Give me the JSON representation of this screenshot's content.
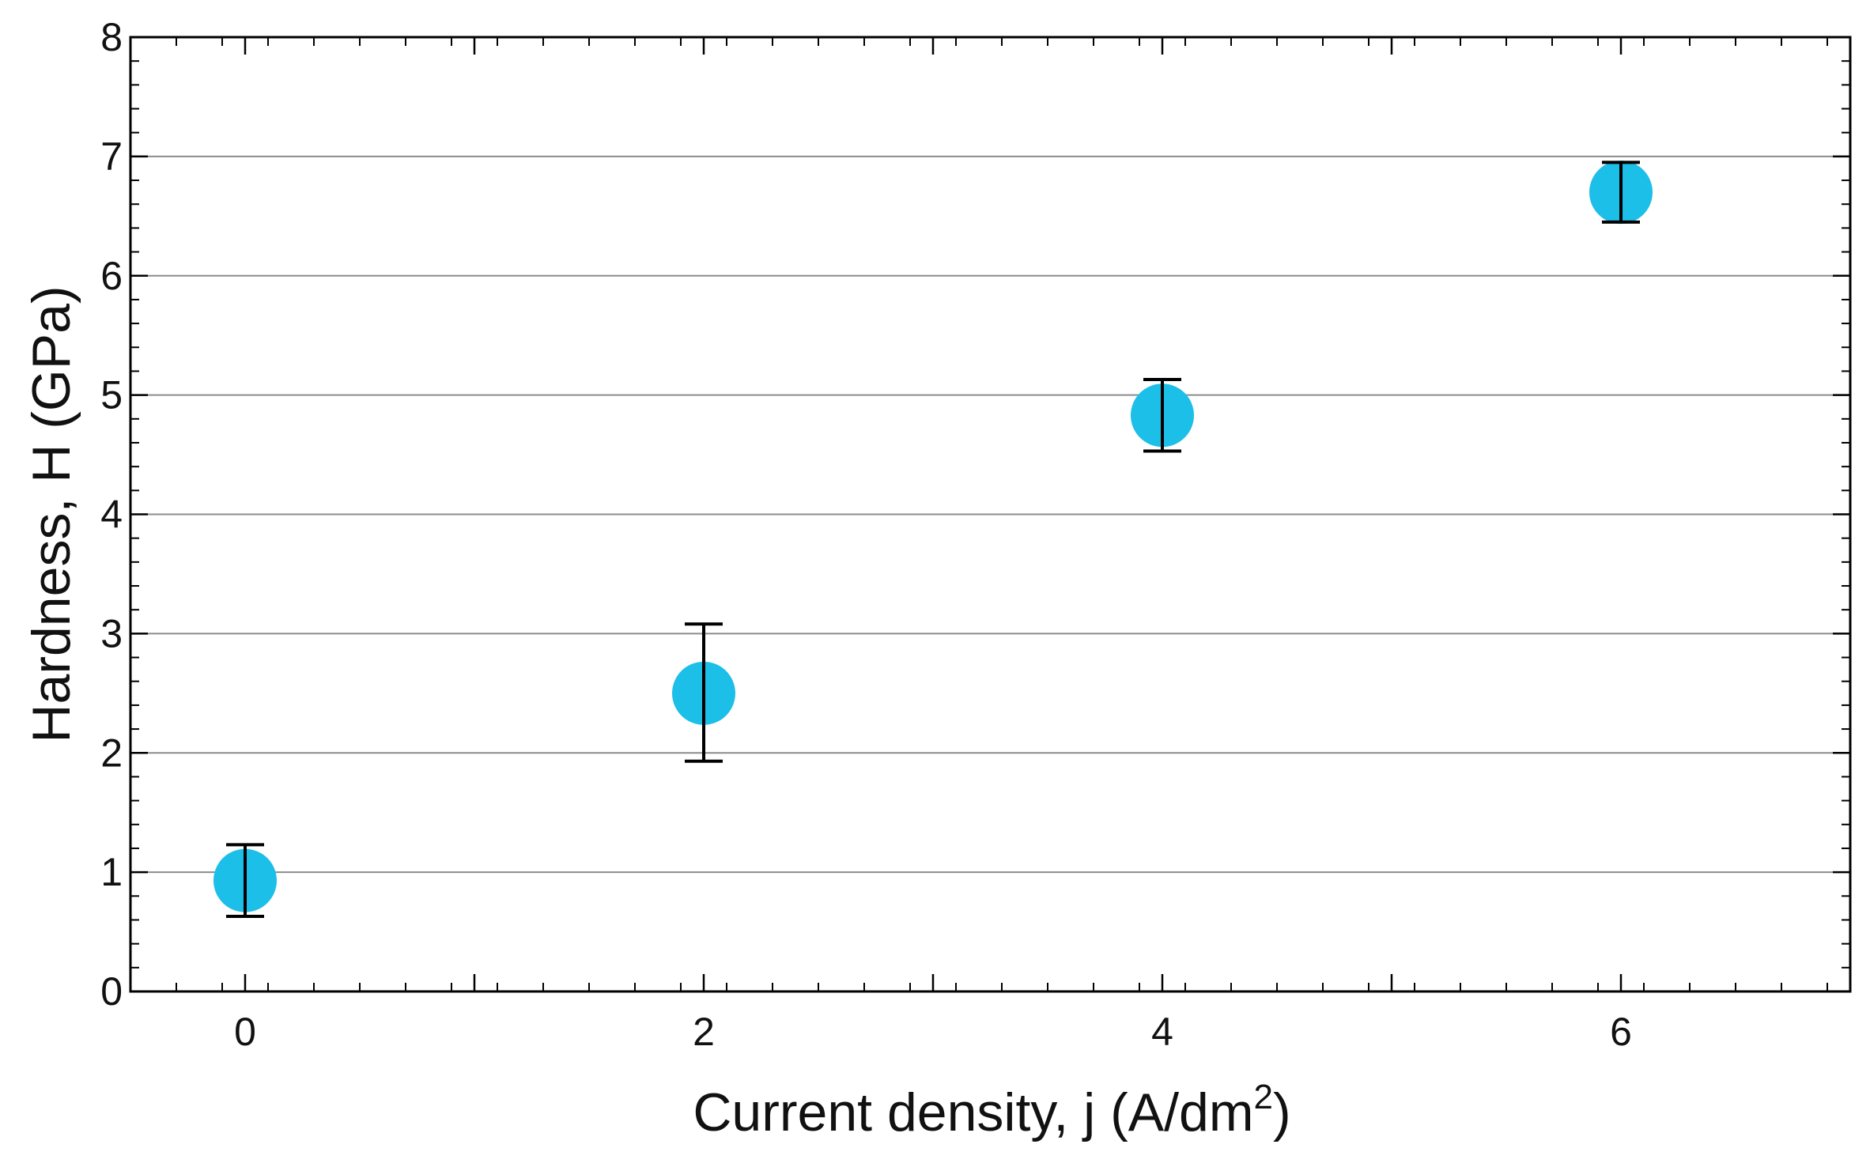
{
  "chart_data": {
    "type": "scatter",
    "title": "",
    "xlabel": "Current density, j (A/dm",
    "xlabel_superscript": "2",
    "xlabel_suffix": ")",
    "ylabel": "Hardness, H (GPa)",
    "xlim": [
      -0.5,
      7
    ],
    "ylim": [
      0,
      8
    ],
    "x_ticks": [
      "0",
      "2",
      "4",
      "6"
    ],
    "y_ticks": [
      "0",
      "1",
      "2",
      "3",
      "4",
      "5",
      "6",
      "7",
      "8"
    ],
    "grid": "horizontal",
    "legend": "none",
    "series": [
      {
        "x": [
          0,
          2,
          4,
          6
        ],
        "y": [
          0.93,
          2.5,
          4.83,
          6.7
        ],
        "error_low": [
          0.63,
          1.93,
          4.53,
          6.45
        ],
        "error_high": [
          1.23,
          3.08,
          5.13,
          6.95
        ]
      }
    ],
    "colors": {
      "marker": "#1CBFE8",
      "error_bar": "#000000",
      "grid": "#8c8c8c",
      "axis": "#000000"
    }
  }
}
